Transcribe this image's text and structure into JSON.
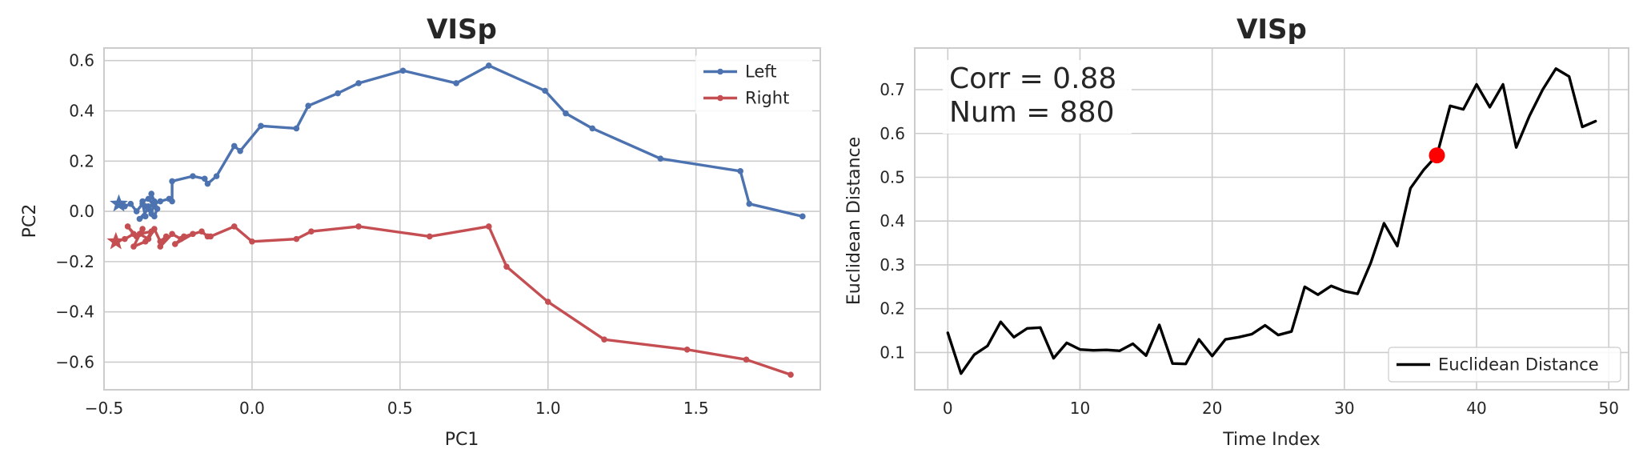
{
  "chart_data": [
    {
      "type": "line",
      "title": "VISp",
      "xlabel": "PC1",
      "ylabel": "PC2",
      "xlim": [
        -0.5,
        1.92
      ],
      "ylim": [
        -0.71,
        0.65
      ],
      "xticks": [
        -0.5,
        0.0,
        0.5,
        1.0,
        1.5
      ],
      "xtick_labels": [
        "−0.5",
        "0.0",
        "0.5",
        "1.0",
        "1.5"
      ],
      "yticks": [
        -0.6,
        -0.4,
        -0.2,
        0.0,
        0.2,
        0.4,
        0.6
      ],
      "ytick_labels": [
        "−0.6",
        "−0.4",
        "−0.2",
        "0.0",
        "0.2",
        "0.4",
        "0.6"
      ],
      "grid": true,
      "legend_position": "top-right",
      "series": [
        {
          "name": "Left",
          "color": "#4c72b0",
          "start_marker": "star",
          "x": [
            -0.45,
            -0.43,
            -0.41,
            -0.39,
            -0.37,
            -0.36,
            -0.38,
            -0.35,
            -0.33,
            -0.34,
            -0.36,
            -0.37,
            -0.35,
            -0.33,
            -0.34,
            -0.32,
            -0.33,
            -0.35,
            -0.33,
            -0.31,
            -0.28,
            -0.27,
            -0.27,
            -0.2,
            -0.16,
            -0.15,
            -0.12,
            -0.06,
            -0.04,
            0.03,
            0.15,
            0.19,
            0.29,
            0.36,
            0.51,
            0.69,
            0.8,
            0.99,
            1.06,
            1.15,
            1.38,
            1.65,
            1.68,
            1.86
          ],
          "y": [
            0.03,
            0.02,
            0.03,
            0.0,
            0.03,
            -0.02,
            -0.03,
            0.01,
            0.04,
            -0.01,
            0.02,
            0.04,
            0.05,
            0.02,
            0.07,
            0.01,
            -0.02,
            0.02,
            0.03,
            0.04,
            0.05,
            0.04,
            0.12,
            0.14,
            0.13,
            0.11,
            0.14,
            0.26,
            0.24,
            0.34,
            0.33,
            0.42,
            0.47,
            0.51,
            0.56,
            0.51,
            0.58,
            0.48,
            0.39,
            0.33,
            0.21,
            0.16,
            0.03,
            -0.02
          ]
        },
        {
          "name": "Right",
          "color": "#c44e52",
          "start_marker": "star",
          "x": [
            -0.46,
            -0.43,
            -0.4,
            -0.42,
            -0.39,
            -0.37,
            -0.4,
            -0.36,
            -0.34,
            -0.38,
            -0.35,
            -0.33,
            -0.31,
            -0.29,
            -0.31,
            -0.27,
            -0.24,
            -0.26,
            -0.2,
            -0.23,
            -0.17,
            -0.15,
            -0.14,
            -0.06,
            0.0,
            0.15,
            0.2,
            0.36,
            0.6,
            0.8,
            0.86,
            1.0,
            1.19,
            1.47,
            1.67,
            1.82
          ],
          "y": [
            -0.12,
            -0.11,
            -0.09,
            -0.06,
            -0.1,
            -0.07,
            -0.14,
            -0.12,
            -0.08,
            -0.09,
            -0.11,
            -0.07,
            -0.12,
            -0.1,
            -0.14,
            -0.09,
            -0.11,
            -0.13,
            -0.09,
            -0.1,
            -0.08,
            -0.1,
            -0.1,
            -0.06,
            -0.12,
            -0.11,
            -0.08,
            -0.06,
            -0.1,
            -0.06,
            -0.22,
            -0.36,
            -0.51,
            -0.55,
            -0.59,
            -0.65
          ]
        }
      ]
    },
    {
      "type": "line",
      "title": "VISp",
      "xlabel": "Time Index",
      "ylabel": "Euclidean Distance",
      "xlim": [
        -2.5,
        51.5
      ],
      "ylim": [
        0.015,
        0.795
      ],
      "xticks": [
        0,
        10,
        20,
        30,
        40,
        50
      ],
      "xtick_labels": [
        "0",
        "10",
        "20",
        "30",
        "40",
        "50"
      ],
      "yticks": [
        0.1,
        0.2,
        0.3,
        0.4,
        0.5,
        0.6,
        0.7
      ],
      "ytick_labels": [
        "0.1",
        "0.2",
        "0.3",
        "0.4",
        "0.5",
        "0.6",
        "0.7"
      ],
      "grid": true,
      "legend_position": "bottom-right",
      "annotation_lines": [
        "Corr = 0.88",
        "Num = 880"
      ],
      "highlight_point": {
        "x": 37,
        "y": 0.55,
        "color": "#ff0000"
      },
      "series": [
        {
          "name": "Euclidean Distance",
          "color": "#000000",
          "x": [
            0,
            1,
            2,
            3,
            4,
            5,
            6,
            7,
            8,
            9,
            10,
            11,
            12,
            13,
            14,
            15,
            16,
            17,
            18,
            19,
            20,
            21,
            22,
            23,
            24,
            25,
            26,
            27,
            28,
            29,
            30,
            31,
            32,
            33,
            34,
            35,
            36,
            37,
            38,
            39,
            40,
            41,
            42,
            43,
            44,
            45,
            46,
            47,
            48,
            49
          ],
          "y": [
            0.145,
            0.052,
            0.095,
            0.115,
            0.17,
            0.135,
            0.155,
            0.157,
            0.087,
            0.122,
            0.107,
            0.105,
            0.106,
            0.104,
            0.12,
            0.093,
            0.163,
            0.075,
            0.074,
            0.13,
            0.092,
            0.13,
            0.135,
            0.142,
            0.162,
            0.14,
            0.148,
            0.25,
            0.232,
            0.252,
            0.24,
            0.234,
            0.305,
            0.395,
            0.343,
            0.475,
            0.517,
            0.55,
            0.663,
            0.655,
            0.712,
            0.66,
            0.712,
            0.568,
            0.64,
            0.7,
            0.748,
            0.73,
            0.615,
            0.628
          ]
        }
      ]
    }
  ]
}
